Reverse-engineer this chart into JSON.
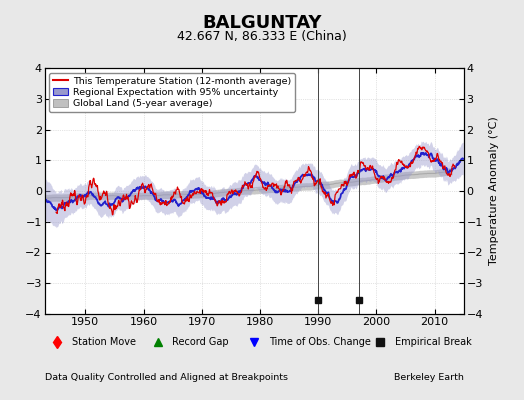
{
  "title": "BALGUNTAY",
  "subtitle": "42.667 N, 86.333 E (China)",
  "ylabel": "Temperature Anomaly (°C)",
  "xlabel_left": "Data Quality Controlled and Aligned at Breakpoints",
  "xlabel_right": "Berkeley Earth",
  "ylim": [
    -4,
    4
  ],
  "xlim": [
    1943,
    2015
  ],
  "yticks": [
    -4,
    -3,
    -2,
    -1,
    0,
    1,
    2,
    3,
    4
  ],
  "xticks": [
    1950,
    1960,
    1970,
    1980,
    1990,
    2000,
    2010
  ],
  "empirical_breaks": [
    1990,
    1997
  ],
  "background_color": "#e8e8e8",
  "plot_background": "#ffffff",
  "line_color_station": "#dd0000",
  "line_color_regional": "#2222cc",
  "fill_color_regional": "#9999cc",
  "fill_color_global": "#c0c0c0",
  "title_fontsize": 13,
  "subtitle_fontsize": 9,
  "tick_fontsize": 8,
  "label_fontsize": 7.5
}
